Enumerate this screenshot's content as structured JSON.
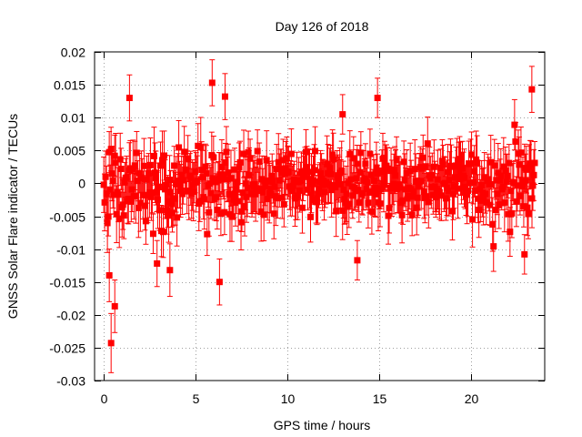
{
  "chart_data": {
    "type": "scatter",
    "title": "Day 126 of 2018",
    "xlabel": "GPS time / hours",
    "ylabel": "GNSS Solar Flare indicator / TECUs",
    "xlim": [
      -0.5,
      24
    ],
    "ylim": [
      -0.03,
      0.02
    ],
    "xticks": [
      0,
      5,
      10,
      15,
      20
    ],
    "xtick_labels": [
      "0",
      "5",
      "10",
      "15",
      "20"
    ],
    "yticks": [
      -0.03,
      -0.025,
      -0.02,
      -0.015,
      -0.01,
      -0.005,
      0,
      0.005,
      0.01,
      0.015,
      0.02
    ],
    "ytick_labels": [
      "-0.03",
      "-0.025",
      "-0.02",
      "-0.015",
      "-0.01",
      "-0.005",
      "0",
      "0.005",
      "0.01",
      "0.015",
      "0.02"
    ],
    "grid": true,
    "series_color": "#ff0000",
    "series": [
      {
        "name": "solar flare indicator",
        "marker": "square",
        "error_bars": true,
        "time_range_hours": [
          0,
          23.5
        ],
        "sample_interval_hours": 0.0083,
        "typical_value_range": [
          -0.01,
          0.01
        ],
        "typical_error": 0.0035,
        "notable_points": [
          {
            "x": 0.4,
            "y": -0.0243,
            "err": 0.0045
          },
          {
            "x": 0.6,
            "y": -0.0187,
            "err": 0.004
          },
          {
            "x": 0.3,
            "y": -0.014,
            "err": 0.004
          },
          {
            "x": 1.4,
            "y": 0.013,
            "err": 0.0035
          },
          {
            "x": 2.9,
            "y": -0.0122,
            "err": 0.0035
          },
          {
            "x": 3.6,
            "y": -0.0132,
            "err": 0.004
          },
          {
            "x": 5.9,
            "y": 0.0153,
            "err": 0.0035
          },
          {
            "x": 6.3,
            "y": -0.015,
            "err": 0.0035
          },
          {
            "x": 6.6,
            "y": 0.0132,
            "err": 0.0035
          },
          {
            "x": 13.0,
            "y": 0.0105,
            "err": 0.003
          },
          {
            "x": 13.8,
            "y": -0.0117,
            "err": 0.003
          },
          {
            "x": 14.9,
            "y": 0.013,
            "err": 0.003
          },
          {
            "x": 23.3,
            "y": 0.0143,
            "err": 0.0035
          },
          {
            "x": 22.9,
            "y": -0.0108,
            "err": 0.003
          }
        ]
      }
    ]
  }
}
